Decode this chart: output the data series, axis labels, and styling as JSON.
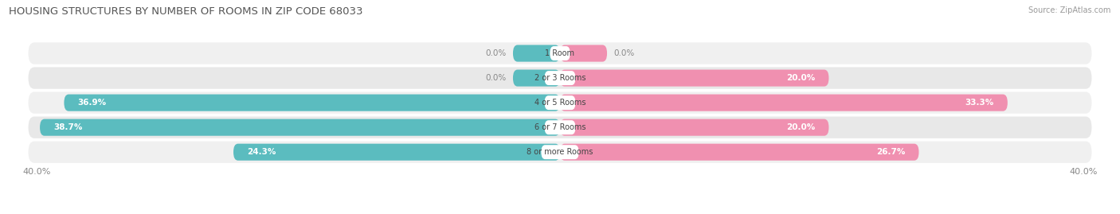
{
  "title": "HOUSING STRUCTURES BY NUMBER OF ROOMS IN ZIP CODE 68033",
  "source": "Source: ZipAtlas.com",
  "categories": [
    "1 Room",
    "2 or 3 Rooms",
    "4 or 5 Rooms",
    "6 or 7 Rooms",
    "8 or more Rooms"
  ],
  "owner_values": [
    0.0,
    0.0,
    36.9,
    38.7,
    24.3
  ],
  "renter_values": [
    0.0,
    20.0,
    33.3,
    20.0,
    26.7
  ],
  "owner_color": "#5bbcbf",
  "renter_color": "#f090b0",
  "row_bg_even": "#f0f0f0",
  "row_bg_odd": "#e8e8e8",
  "axis_max": 40.0,
  "title_fontsize": 9.5,
  "source_fontsize": 7,
  "bar_label_fontsize": 7.5,
  "cat_label_fontsize": 7,
  "axis_label_fontsize": 8,
  "background_color": "#ffffff",
  "zero_bar_size": 3.5,
  "cat_label_widths": [
    1.5,
    2.3,
    2.3,
    2.3,
    2.8
  ]
}
